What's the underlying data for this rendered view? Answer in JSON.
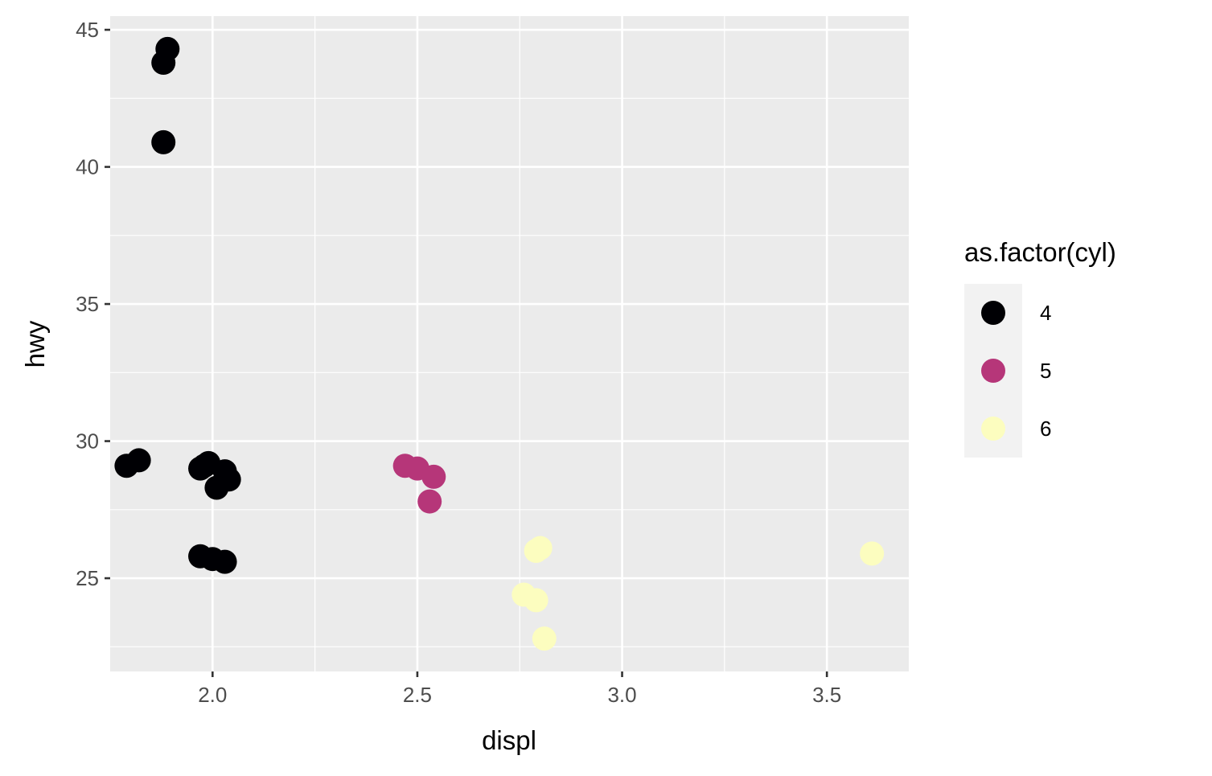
{
  "chart_data": {
    "type": "scatter",
    "xlabel": "displ",
    "ylabel": "hwy",
    "xlim": [
      1.75,
      3.7
    ],
    "ylim": [
      21.6,
      45.5
    ],
    "x_ticks": [
      2.0,
      2.5,
      3.0,
      3.5
    ],
    "x_tick_labels": [
      "2.0",
      "2.5",
      "3.0",
      "3.5"
    ],
    "y_ticks": [
      25,
      30,
      35,
      40,
      45
    ],
    "y_tick_labels": [
      "25",
      "30",
      "35",
      "40",
      "45"
    ],
    "grid": true,
    "legend": {
      "title": "as.factor(cyl)",
      "placement": "right"
    },
    "series": [
      {
        "name": "4",
        "color": "#000004",
        "points": [
          [
            1.89,
            44.3
          ],
          [
            1.88,
            43.8
          ],
          [
            1.88,
            40.9
          ],
          [
            1.79,
            29.1
          ],
          [
            1.82,
            29.3
          ],
          [
            1.97,
            29.0
          ],
          [
            1.98,
            29.1
          ],
          [
            1.99,
            29.2
          ],
          [
            2.03,
            28.9
          ],
          [
            2.04,
            28.6
          ],
          [
            2.01,
            28.3
          ],
          [
            1.97,
            25.8
          ],
          [
            2.0,
            25.7
          ],
          [
            2.03,
            25.6
          ]
        ]
      },
      {
        "name": "5",
        "color": "#B63679",
        "points": [
          [
            2.47,
            29.1
          ],
          [
            2.5,
            29.0
          ],
          [
            2.54,
            28.7
          ],
          [
            2.53,
            27.8
          ]
        ]
      },
      {
        "name": "6",
        "color": "#FCFDBF",
        "points": [
          [
            2.8,
            26.1
          ],
          [
            2.79,
            26.0
          ],
          [
            2.76,
            24.4
          ],
          [
            2.79,
            24.2
          ],
          [
            2.81,
            22.8
          ],
          [
            3.61,
            25.9
          ]
        ]
      }
    ]
  }
}
